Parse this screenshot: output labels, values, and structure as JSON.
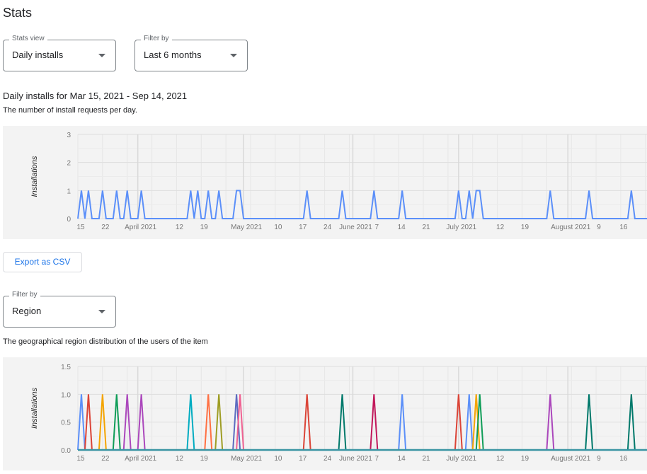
{
  "page_title": "Stats",
  "stats_view": {
    "label": "Stats view",
    "value": "Daily installs"
  },
  "filter_period": {
    "label": "Filter by",
    "value": "Last 6 months"
  },
  "section_heading": "Daily installs for Mar 15, 2021 - Sep 14, 2021",
  "section_description": "The number of install requests per day.",
  "export_button": "Export as CSV",
  "filter_region": {
    "label": "Filter by",
    "value": "Region"
  },
  "region_description": "The geographical region distribution of the users of the item",
  "chart_data": [
    {
      "type": "line",
      "ylabel": "Installations",
      "xlim": [
        "2021-03-15",
        "2021-09-14"
      ],
      "ylim": [
        0,
        3
      ],
      "yticks": [
        "0",
        "1",
        "2",
        "3"
      ],
      "grid": true,
      "color": "#5b8ff9",
      "x_ticks": [
        {
          "date": "2021-03-15",
          "label": "15"
        },
        {
          "date": "2021-03-22",
          "label": "22"
        },
        {
          "date": "2021-04-01",
          "label": "April 2021"
        },
        {
          "date": "2021-04-12",
          "label": "12"
        },
        {
          "date": "2021-04-19",
          "label": "19"
        },
        {
          "date": "2021-05-01",
          "label": "May 2021"
        },
        {
          "date": "2021-05-10",
          "label": "10"
        },
        {
          "date": "2021-05-17",
          "label": "17"
        },
        {
          "date": "2021-05-24",
          "label": "24"
        },
        {
          "date": "2021-06-01",
          "label": "June 2021"
        },
        {
          "date": "2021-06-07",
          "label": "7"
        },
        {
          "date": "2021-06-14",
          "label": "14"
        },
        {
          "date": "2021-06-21",
          "label": "21"
        },
        {
          "date": "2021-07-01",
          "label": "July 2021"
        },
        {
          "date": "2021-07-12",
          "label": "12"
        },
        {
          "date": "2021-07-19",
          "label": "19"
        },
        {
          "date": "2021-08-01",
          "label": "August 2021"
        },
        {
          "date": "2021-08-09",
          "label": "9"
        },
        {
          "date": "2021-08-16",
          "label": "16"
        }
      ],
      "default_value": 0,
      "points": [
        {
          "date": "2021-03-16",
          "value": 1
        },
        {
          "date": "2021-03-18",
          "value": 1
        },
        {
          "date": "2021-03-22",
          "value": 1
        },
        {
          "date": "2021-03-26",
          "value": 1
        },
        {
          "date": "2021-03-29",
          "value": 1
        },
        {
          "date": "2021-04-02",
          "value": 1
        },
        {
          "date": "2021-04-16",
          "value": 1
        },
        {
          "date": "2021-04-18",
          "value": 1
        },
        {
          "date": "2021-04-21",
          "value": 1
        },
        {
          "date": "2021-04-24",
          "value": 1
        },
        {
          "date": "2021-04-29",
          "value": 1
        },
        {
          "date": "2021-04-30",
          "value": 1
        },
        {
          "date": "2021-05-19",
          "value": 1
        },
        {
          "date": "2021-05-29",
          "value": 1
        },
        {
          "date": "2021-06-07",
          "value": 1
        },
        {
          "date": "2021-06-15",
          "value": 1
        },
        {
          "date": "2021-07-01",
          "value": 1
        },
        {
          "date": "2021-07-04",
          "value": 1
        },
        {
          "date": "2021-07-06",
          "value": 1
        },
        {
          "date": "2021-07-07",
          "value": 1
        },
        {
          "date": "2021-07-27",
          "value": 1
        },
        {
          "date": "2021-08-07",
          "value": 1
        },
        {
          "date": "2021-08-19",
          "value": 1
        }
      ]
    },
    {
      "type": "line",
      "ylabel": "Installations",
      "xlim": [
        "2021-03-15",
        "2021-09-14"
      ],
      "ylim": [
        0,
        1.5
      ],
      "yticks": [
        "0.0",
        "0.5",
        "1.0",
        "1.5"
      ],
      "grid": true,
      "baseline_color": "#3a95a3",
      "default_value": 0,
      "series": [
        {
          "color": "#5b8ff9",
          "points": [
            {
              "date": "2021-03-16",
              "value": 1
            },
            {
              "date": "2021-06-15",
              "value": 1
            },
            {
              "date": "2021-07-04",
              "value": 1
            }
          ]
        },
        {
          "color": "#db4437",
          "points": [
            {
              "date": "2021-03-18",
              "value": 1
            },
            {
              "date": "2021-05-19",
              "value": 1
            },
            {
              "date": "2021-07-01",
              "value": 1
            }
          ]
        },
        {
          "color": "#f4a400",
          "points": [
            {
              "date": "2021-03-22",
              "value": 1
            },
            {
              "date": "2021-07-06",
              "value": 1
            }
          ]
        },
        {
          "color": "#0f9d58",
          "points": [
            {
              "date": "2021-03-26",
              "value": 1
            },
            {
              "date": "2021-07-07",
              "value": 1
            }
          ]
        },
        {
          "color": "#ab47bc",
          "points": [
            {
              "date": "2021-03-29",
              "value": 1
            },
            {
              "date": "2021-04-02",
              "value": 1
            },
            {
              "date": "2021-07-27",
              "value": 1
            }
          ]
        },
        {
          "color": "#00acc1",
          "points": [
            {
              "date": "2021-04-16",
              "value": 1
            }
          ]
        },
        {
          "color": "#ff7043",
          "points": [
            {
              "date": "2021-04-21",
              "value": 1
            }
          ]
        },
        {
          "color": "#9e9d24",
          "points": [
            {
              "date": "2021-04-24",
              "value": 1
            }
          ]
        },
        {
          "color": "#5c6bc0",
          "points": [
            {
              "date": "2021-04-29",
              "value": 1
            }
          ]
        },
        {
          "color": "#f06292",
          "points": [
            {
              "date": "2021-04-30",
              "value": 1
            }
          ]
        },
        {
          "color": "#00796b",
          "points": [
            {
              "date": "2021-05-29",
              "value": 1
            },
            {
              "date": "2021-08-07",
              "value": 1
            },
            {
              "date": "2021-08-19",
              "value": 1
            }
          ]
        },
        {
          "color": "#c2185b",
          "points": [
            {
              "date": "2021-06-07",
              "value": 1
            }
          ]
        }
      ]
    }
  ]
}
